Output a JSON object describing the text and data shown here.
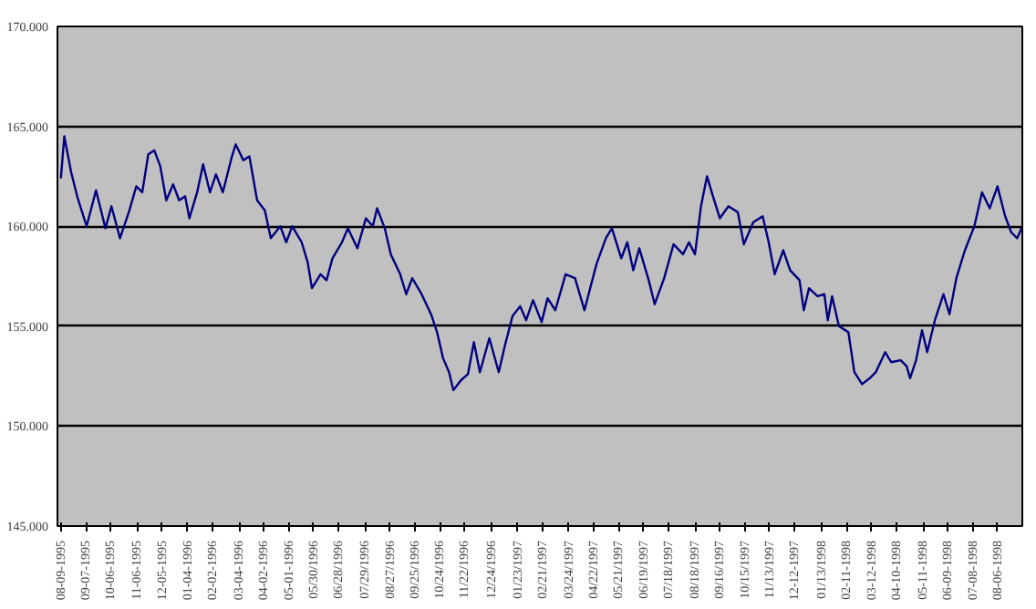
{
  "chart_data": {
    "type": "line",
    "x": [
      "1995-08-09",
      "1995-08-13",
      "1995-08-21",
      "1995-08-28",
      "1995-09-08",
      "1995-09-19",
      "1995-09-30",
      "1995-10-07",
      "1995-10-17",
      "1995-10-28",
      "1995-11-05",
      "1995-11-12",
      "1995-11-19",
      "1995-11-26",
      "1995-12-03",
      "1995-12-10",
      "1995-12-18",
      "1995-12-25",
      "1996-01-01",
      "1996-01-06",
      "1996-01-15",
      "1996-01-22",
      "1996-01-30",
      "1996-02-06",
      "1996-02-14",
      "1996-02-24",
      "1996-02-29",
      "1996-03-09",
      "1996-03-16",
      "1996-03-25",
      "1996-04-03",
      "1996-04-10",
      "1996-04-21",
      "1996-04-28",
      "1996-05-05",
      "1996-05-16",
      "1996-05-23",
      "1996-05-28",
      "1996-06-07",
      "1996-06-14",
      "1996-06-21",
      "1996-07-02",
      "1996-07-09",
      "1996-07-20",
      "1996-07-30",
      "1996-08-07",
      "1996-08-12",
      "1996-08-21",
      "1996-08-28",
      "1996-09-08",
      "1996-09-15",
      "1996-09-22",
      "1996-10-03",
      "1996-10-14",
      "1996-10-21",
      "1996-10-28",
      "1996-11-04",
      "1996-11-09",
      "1996-11-18",
      "1996-11-26",
      "1996-12-03",
      "1996-12-10",
      "1996-12-21",
      "1997-01-01",
      "1997-01-08",
      "1997-01-17",
      "1997-01-26",
      "1997-02-02",
      "1997-02-10",
      "1997-02-20",
      "1997-02-27",
      "1997-03-08",
      "1997-03-20",
      "1997-03-31",
      "1997-04-11",
      "1997-04-25",
      "1997-05-06",
      "1997-05-13",
      "1997-05-24",
      "1997-05-31",
      "1997-06-07",
      "1997-06-14",
      "1997-06-25",
      "1997-07-02",
      "1997-07-13",
      "1997-07-24",
      "1997-08-04",
      "1997-08-11",
      "1997-08-18",
      "1997-08-25",
      "1997-09-01",
      "1997-09-08",
      "1997-09-16",
      "1997-09-26",
      "1997-10-07",
      "1997-10-14",
      "1997-10-25",
      "1997-11-05",
      "1997-11-12",
      "1997-11-19",
      "1997-11-29",
      "1997-12-07",
      "1997-12-18",
      "1997-12-23",
      "1997-12-29",
      "1998-01-08",
      "1998-01-16",
      "1998-01-20",
      "1998-01-25",
      "1998-02-02",
      "1998-02-13",
      "1998-02-20",
      "1998-03-01",
      "1998-03-10",
      "1998-03-17",
      "1998-03-28",
      "1998-04-04",
      "1998-04-15",
      "1998-04-22",
      "1998-04-26",
      "1998-05-03",
      "1998-05-10",
      "1998-05-16",
      "1998-05-25",
      "1998-06-04",
      "1998-06-11",
      "1998-06-19",
      "1998-06-29",
      "1998-07-10",
      "1998-07-19",
      "1998-07-28",
      "1998-08-06",
      "1998-08-15",
      "1998-08-22",
      "1998-08-29",
      "1998-09-03"
    ],
    "series": [
      {
        "color": "#000080",
        "values": [
          162.4,
          164.5,
          162.7,
          161.5,
          160.0,
          161.8,
          159.9,
          161.0,
          159.4,
          160.8,
          162.0,
          161.7,
          163.6,
          163.8,
          163.0,
          161.3,
          162.1,
          161.3,
          161.5,
          160.4,
          161.7,
          163.1,
          161.7,
          162.6,
          161.7,
          163.4,
          164.1,
          163.3,
          163.5,
          161.3,
          160.8,
          159.4,
          160.0,
          159.2,
          160.0,
          159.2,
          158.2,
          156.9,
          157.6,
          157.3,
          158.4,
          159.2,
          159.9,
          158.9,
          160.4,
          160.0,
          160.9,
          159.9,
          158.6,
          157.6,
          156.6,
          157.4,
          156.6,
          155.6,
          154.7,
          153.4,
          152.7,
          151.8,
          152.3,
          152.6,
          154.2,
          152.7,
          154.4,
          152.7,
          154.0,
          155.5,
          156.0,
          155.3,
          156.3,
          155.2,
          156.4,
          155.8,
          157.6,
          157.4,
          155.8,
          158.1,
          159.4,
          159.9,
          158.4,
          159.2,
          157.8,
          158.9,
          157.3,
          156.1,
          157.4,
          159.1,
          158.6,
          159.2,
          158.6,
          161.0,
          162.5,
          161.5,
          160.4,
          161.0,
          160.7,
          159.1,
          160.2,
          160.5,
          159.2,
          157.6,
          158.8,
          157.8,
          157.3,
          155.8,
          156.9,
          156.5,
          156.6,
          155.3,
          156.5,
          155.0,
          154.7,
          152.7,
          152.1,
          152.4,
          152.7,
          153.7,
          153.2,
          153.3,
          153.0,
          152.4,
          153.3,
          154.8,
          153.7,
          155.3,
          156.6,
          155.6,
          157.4,
          158.8,
          160.0,
          161.7,
          160.9,
          162.0,
          160.5,
          159.7,
          159.4,
          159.9
        ]
      }
    ],
    "xlim": [
      "1995-08-05",
      "1998-09-04"
    ],
    "xticks": [
      {
        "value": "1995-08-09",
        "label": "08-09-1995"
      },
      {
        "value": "1995-09-07",
        "label": "09-07-1995"
      },
      {
        "value": "1995-10-06",
        "label": "10-06-1995"
      },
      {
        "value": "1995-11-06",
        "label": "11-06-1995"
      },
      {
        "value": "1995-12-05",
        "label": "12-05-1995"
      },
      {
        "value": "1996-01-04",
        "label": "01-04-1996"
      },
      {
        "value": "1996-02-02",
        "label": "02-02-1996"
      },
      {
        "value": "1996-03-04",
        "label": "03-04-1996"
      },
      {
        "value": "1996-04-02",
        "label": "04-02-1996"
      },
      {
        "value": "1996-05-01",
        "label": "05-01-1996"
      },
      {
        "value": "1996-05-30",
        "label": "05/30/1996"
      },
      {
        "value": "1996-06-28",
        "label": "06/28/1996"
      },
      {
        "value": "1996-07-29",
        "label": "07/29/1996"
      },
      {
        "value": "1996-08-27",
        "label": "08/27/1996"
      },
      {
        "value": "1996-09-25",
        "label": "09/25/1996"
      },
      {
        "value": "1996-10-24",
        "label": "10/24/1996"
      },
      {
        "value": "1996-11-22",
        "label": "11/22/1996"
      },
      {
        "value": "1996-12-24",
        "label": "12/24/1996"
      },
      {
        "value": "1997-01-23",
        "label": "01/23/1997"
      },
      {
        "value": "1997-02-21",
        "label": "02/21/1997"
      },
      {
        "value": "1997-03-24",
        "label": "03/24/1997"
      },
      {
        "value": "1997-04-22",
        "label": "04/22/1997"
      },
      {
        "value": "1997-05-21",
        "label": "05/21/1997"
      },
      {
        "value": "1997-06-19",
        "label": "06/19/1997"
      },
      {
        "value": "1997-07-18",
        "label": "07/18/1997"
      },
      {
        "value": "1997-08-18",
        "label": "08/18/1997"
      },
      {
        "value": "1997-09-16",
        "label": "09/16/1997"
      },
      {
        "value": "1997-10-15",
        "label": "10/15/1997"
      },
      {
        "value": "1997-11-13",
        "label": "11/13/1997"
      },
      {
        "value": "1997-12-12",
        "label": "12-12-1997"
      },
      {
        "value": "1998-01-13",
        "label": "01/13/1998"
      },
      {
        "value": "1998-02-11",
        "label": "02-11-1998"
      },
      {
        "value": "1998-03-12",
        "label": "03-12-1998"
      },
      {
        "value": "1998-04-10",
        "label": "04-10-1998"
      },
      {
        "value": "1998-05-11",
        "label": "05-11-1998"
      },
      {
        "value": "1998-06-09",
        "label": "06-09-1998"
      },
      {
        "value": "1998-07-08",
        "label": "07-08-1998"
      },
      {
        "value": "1998-08-06",
        "label": "08-06-1998"
      }
    ],
    "ylim": [
      145,
      170
    ],
    "yticks": [
      {
        "value": 145,
        "label": "145.000"
      },
      {
        "value": 150,
        "label": "150.000"
      },
      {
        "value": 155,
        "label": "155.000"
      },
      {
        "value": 160,
        "label": "160.000"
      },
      {
        "value": 165,
        "label": "165.000"
      },
      {
        "value": 170,
        "label": "170.000"
      }
    ],
    "grid": "y"
  }
}
